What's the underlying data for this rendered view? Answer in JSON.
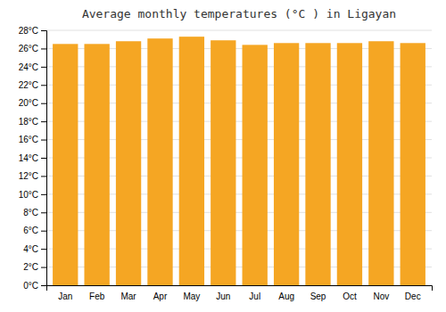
{
  "chart_data": {
    "type": "bar",
    "title": "Average monthly temperatures (°C ) in Ligayan",
    "categories": [
      "Jan",
      "Feb",
      "Mar",
      "Apr",
      "May",
      "Jun",
      "Jul",
      "Aug",
      "Sep",
      "Oct",
      "Nov",
      "Dec"
    ],
    "values": [
      26.5,
      26.5,
      26.8,
      27.1,
      27.3,
      26.9,
      26.4,
      26.6,
      26.6,
      26.6,
      26.8,
      26.6
    ],
    "color": "#F5A623",
    "ylim": [
      0,
      28
    ],
    "yticks": [
      {
        "value": 0,
        "label": "0°C"
      },
      {
        "value": 2,
        "label": "2°C"
      },
      {
        "value": 4,
        "label": "4°C"
      },
      {
        "value": 6,
        "label": "6°C"
      },
      {
        "value": 8,
        "label": "8°C"
      },
      {
        "value": 10,
        "label": "10°C"
      },
      {
        "value": 12,
        "label": "12°C"
      },
      {
        "value": 14,
        "label": "14°C"
      },
      {
        "value": 16,
        "label": "16°C"
      },
      {
        "value": 18,
        "label": "18°C"
      },
      {
        "value": 20,
        "label": "20°C"
      },
      {
        "value": 22,
        "label": "22°C"
      },
      {
        "value": 24,
        "label": "24°C"
      },
      {
        "value": 26,
        "label": "26°C"
      },
      {
        "value": 28,
        "label": "28°C"
      }
    ],
    "grid": true
  }
}
